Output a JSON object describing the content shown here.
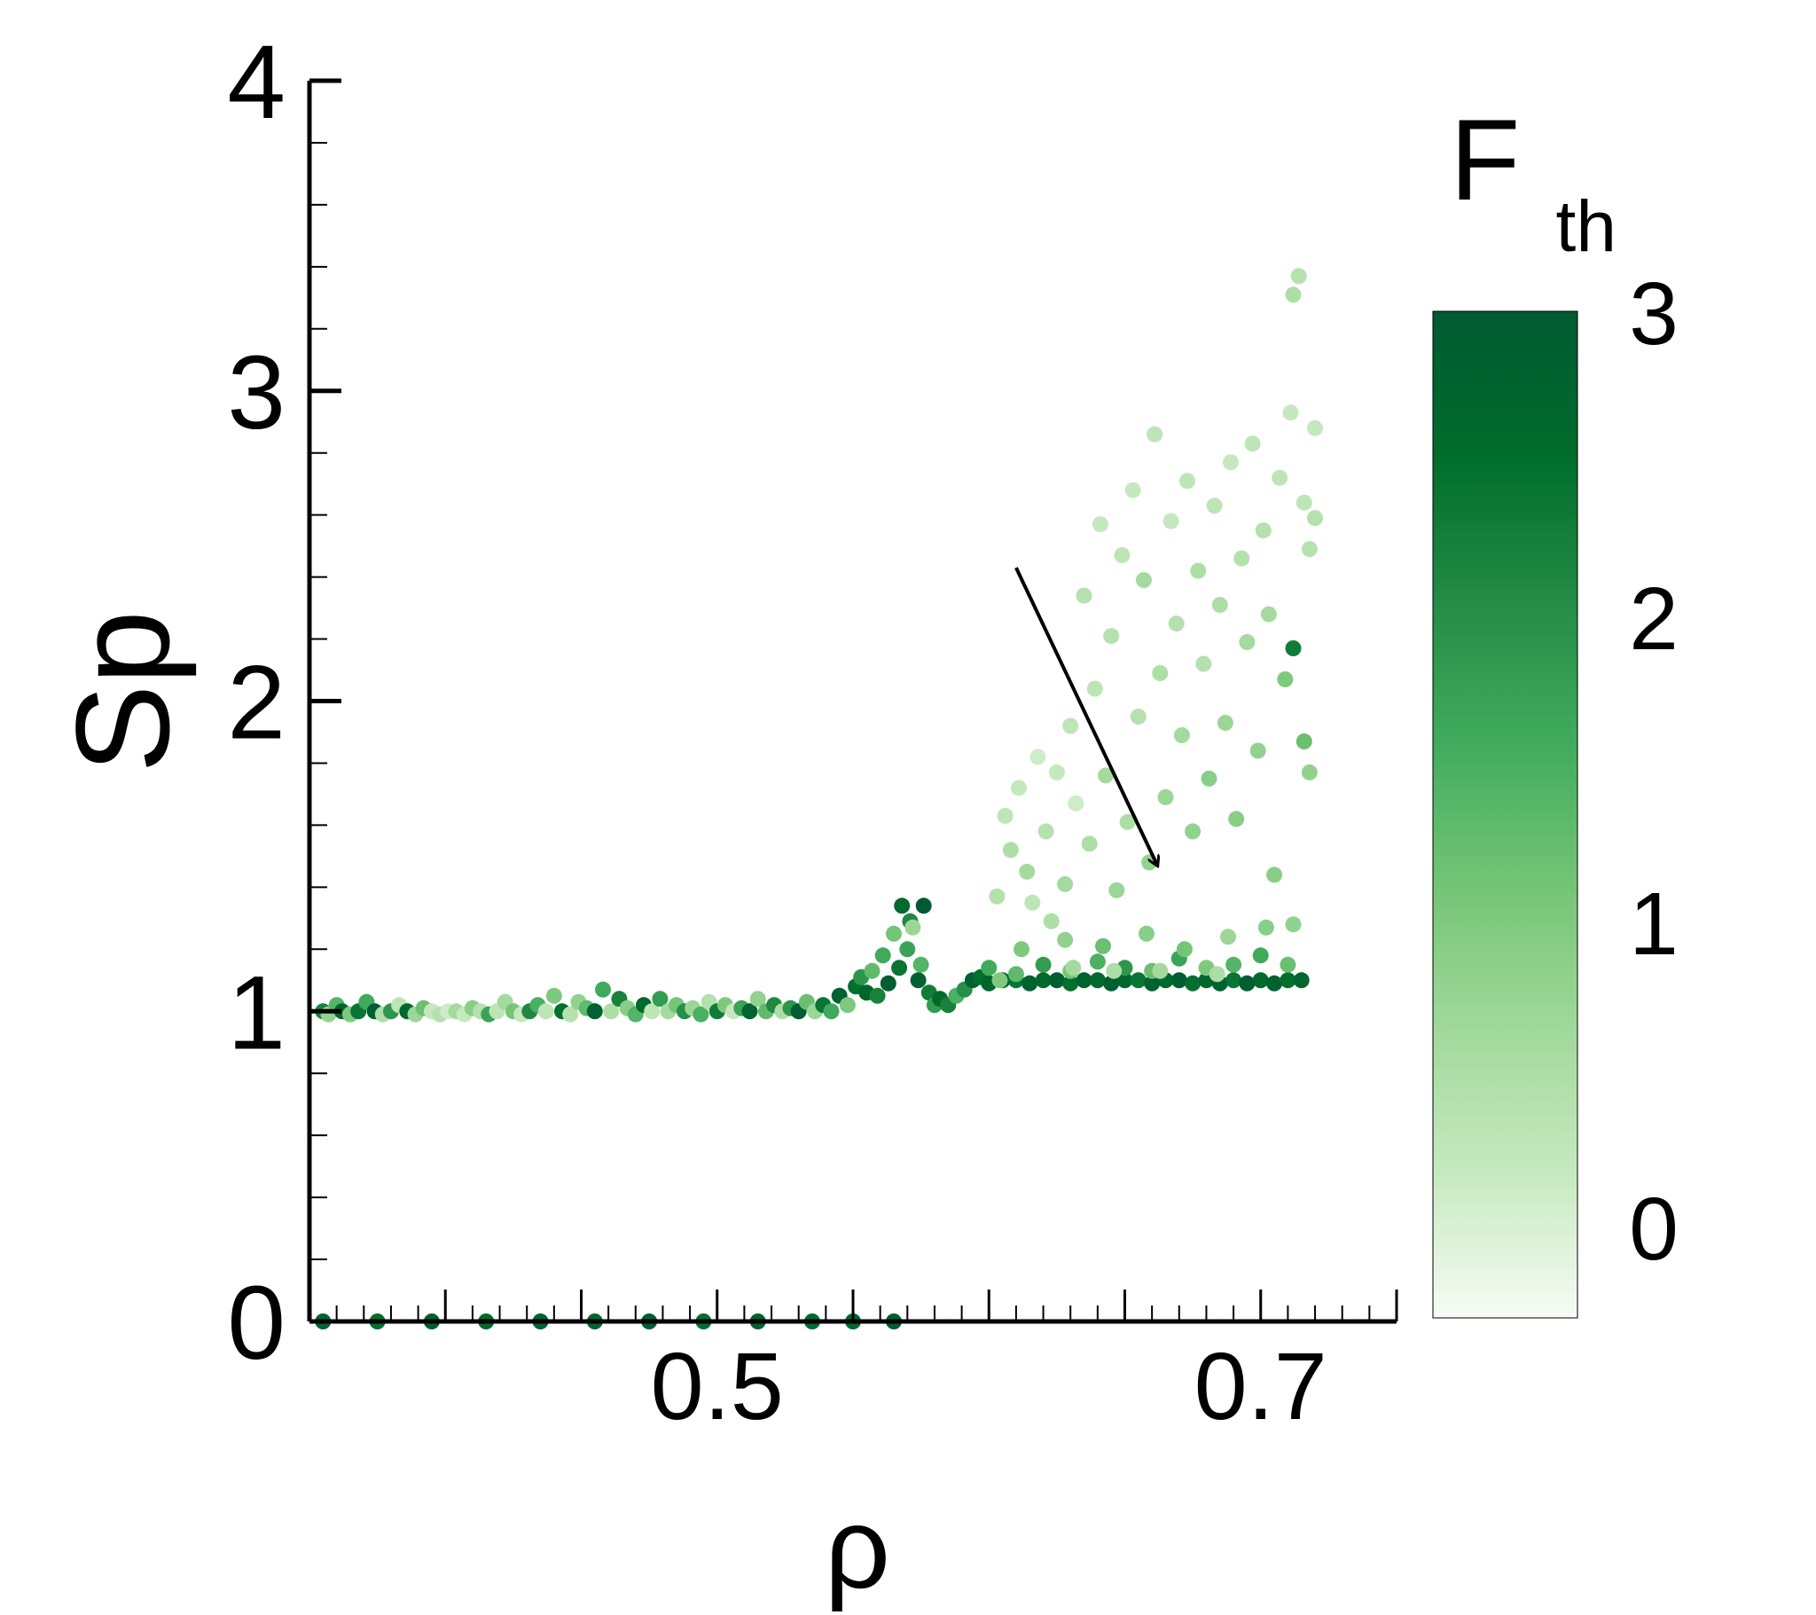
{
  "chart_data": {
    "type": "scatter",
    "title": "",
    "xlabel": "ρ",
    "ylabel": "Sp",
    "xlim": [
      0.35,
      0.75
    ],
    "ylim": [
      0,
      4
    ],
    "x_ticks": [
      0.5,
      0.7
    ],
    "x_tick_labels": [
      "0.5",
      "0.7"
    ],
    "y_ticks": [
      0,
      1,
      2,
      3,
      4
    ],
    "y_tick_labels": [
      "0",
      "1",
      "2",
      "3",
      "4"
    ],
    "grid": false,
    "colorbar": {
      "label_main": "F",
      "label_sub": "th",
      "range": [
        -0.3,
        3
      ],
      "ticks": [
        0,
        1,
        2,
        3
      ],
      "tick_labels": [
        "0",
        "1",
        "2",
        "3"
      ],
      "colors": [
        "#f7fcf5",
        "#c7e9c0",
        "#a1d99b",
        "#74c476",
        "#41ab5d",
        "#238b45",
        "#006d2c",
        "#005a32"
      ]
    },
    "annotation": {
      "type": "arrow",
      "from": [
        0.61,
        2.43
      ],
      "to": [
        0.662,
        1.47
      ]
    },
    "points": [
      [
        0.355,
        1.0,
        2.2
      ],
      [
        0.357,
        0.99,
        0.8
      ],
      [
        0.36,
        1.02,
        1.4
      ],
      [
        0.362,
        1.0,
        2.7
      ],
      [
        0.365,
        0.99,
        1.0
      ],
      [
        0.368,
        1.0,
        2.4
      ],
      [
        0.371,
        1.03,
        1.6
      ],
      [
        0.374,
        1.0,
        2.9
      ],
      [
        0.377,
        0.99,
        0.5
      ],
      [
        0.38,
        1.0,
        1.9
      ],
      [
        0.383,
        1.02,
        0.3
      ],
      [
        0.386,
        1.0,
        2.6
      ],
      [
        0.389,
        0.99,
        0.7
      ],
      [
        0.392,
        1.01,
        1.2
      ],
      [
        0.395,
        1.0,
        0.2
      ],
      [
        0.398,
        0.99,
        0.4
      ],
      [
        0.401,
        1.0,
        0.1
      ],
      [
        0.404,
        1.0,
        0.6
      ],
      [
        0.407,
        0.99,
        0.2
      ],
      [
        0.41,
        1.01,
        0.9
      ],
      [
        0.413,
        1.0,
        0.4
      ],
      [
        0.416,
        0.99,
        1.7
      ],
      [
        0.419,
        1.0,
        0.3
      ],
      [
        0.422,
        1.03,
        0.6
      ],
      [
        0.425,
        1.0,
        1.1
      ],
      [
        0.428,
        0.99,
        0.2
      ],
      [
        0.431,
        1.0,
        2.1
      ],
      [
        0.434,
        1.02,
        1.5
      ],
      [
        0.437,
        1.0,
        0.3
      ],
      [
        0.44,
        1.05,
        1.0
      ],
      [
        0.443,
        1.0,
        2.5
      ],
      [
        0.446,
        0.99,
        0.4
      ],
      [
        0.449,
        1.03,
        0.8
      ],
      [
        0.452,
        1.01,
        1.3
      ],
      [
        0.455,
        1.0,
        2.8
      ],
      [
        0.458,
        1.07,
        1.6
      ],
      [
        0.461,
        1.0,
        0.5
      ],
      [
        0.464,
        1.04,
        2.2
      ],
      [
        0.467,
        1.01,
        0.9
      ],
      [
        0.47,
        0.99,
        1.4
      ],
      [
        0.473,
        1.02,
        2.6
      ],
      [
        0.476,
        1.0,
        0.3
      ],
      [
        0.479,
        1.04,
        1.8
      ],
      [
        0.482,
        1.0,
        0.6
      ],
      [
        0.485,
        1.02,
        1.1
      ],
      [
        0.488,
        1.0,
        2.0
      ],
      [
        0.491,
        1.01,
        0.7
      ],
      [
        0.494,
        0.99,
        1.5
      ],
      [
        0.497,
        1.03,
        0.4
      ],
      [
        0.5,
        1.0,
        2.3
      ],
      [
        0.503,
        1.02,
        1.0
      ],
      [
        0.506,
        1.0,
        0.2
      ],
      [
        0.509,
        1.01,
        1.7
      ],
      [
        0.512,
        1.0,
        2.7
      ],
      [
        0.515,
        1.04,
        0.8
      ],
      [
        0.518,
        1.0,
        1.3
      ],
      [
        0.521,
        1.02,
        2.1
      ],
      [
        0.524,
        1.0,
        0.5
      ],
      [
        0.527,
        1.01,
        1.9
      ],
      [
        0.53,
        1.0,
        2.9
      ],
      [
        0.533,
        1.03,
        1.2
      ],
      [
        0.536,
        1.0,
        0.7
      ],
      [
        0.539,
        1.02,
        2.4
      ],
      [
        0.542,
        1.0,
        1.6
      ],
      [
        0.545,
        1.05,
        2.8
      ],
      [
        0.548,
        1.02,
        1.0
      ],
      [
        0.551,
        1.08,
        2.5
      ],
      [
        0.553,
        1.11,
        1.9
      ],
      [
        0.555,
        1.06,
        2.7
      ],
      [
        0.557,
        1.13,
        1.3
      ],
      [
        0.559,
        1.05,
        2.2
      ],
      [
        0.561,
        1.18,
        1.6
      ],
      [
        0.563,
        1.09,
        2.9
      ],
      [
        0.565,
        1.25,
        1.1
      ],
      [
        0.567,
        1.14,
        2.4
      ],
      [
        0.568,
        1.34,
        2.6
      ],
      [
        0.57,
        1.2,
        1.7
      ],
      [
        0.571,
        1.29,
        2.1
      ],
      [
        0.572,
        1.27,
        0.7
      ],
      [
        0.574,
        1.1,
        2.8
      ],
      [
        0.575,
        1.15,
        1.4
      ],
      [
        0.576,
        1.34,
        3.0
      ],
      [
        0.578,
        1.06,
        2.3
      ],
      [
        0.58,
        1.02,
        1.8
      ],
      [
        0.582,
        1.04,
        2.6
      ],
      [
        0.585,
        1.02,
        2.2
      ],
      [
        0.588,
        1.05,
        1.5
      ],
      [
        0.591,
        1.07,
        2.0
      ],
      [
        0.594,
        1.1,
        2.8
      ],
      [
        0.597,
        1.11,
        2.5
      ],
      [
        0.6,
        1.09,
        2.7
      ],
      [
        0.605,
        1.1,
        2.9
      ],
      [
        0.61,
        1.1,
        2.4
      ],
      [
        0.615,
        1.09,
        2.8
      ],
      [
        0.62,
        1.1,
        2.6
      ],
      [
        0.625,
        1.1,
        2.9
      ],
      [
        0.63,
        1.09,
        2.5
      ],
      [
        0.635,
        1.1,
        2.8
      ],
      [
        0.64,
        1.1,
        2.6
      ],
      [
        0.645,
        1.09,
        2.9
      ],
      [
        0.65,
        1.1,
        2.7
      ],
      [
        0.655,
        1.1,
        2.4
      ],
      [
        0.66,
        1.09,
        2.8
      ],
      [
        0.665,
        1.1,
        2.6
      ],
      [
        0.67,
        1.1,
        2.9
      ],
      [
        0.675,
        1.09,
        2.5
      ],
      [
        0.68,
        1.1,
        2.7
      ],
      [
        0.685,
        1.09,
        2.8
      ],
      [
        0.69,
        1.1,
        2.4
      ],
      [
        0.695,
        1.09,
        2.9
      ],
      [
        0.7,
        1.1,
        2.6
      ],
      [
        0.705,
        1.09,
        2.8
      ],
      [
        0.71,
        1.1,
        2.5
      ],
      [
        0.715,
        1.1,
        2.7
      ],
      [
        0.6,
        1.14,
        1.6
      ],
      [
        0.61,
        1.12,
        1.3
      ],
      [
        0.62,
        1.15,
        1.8
      ],
      [
        0.63,
        1.13,
        1.1
      ],
      [
        0.64,
        1.16,
        1.5
      ],
      [
        0.65,
        1.14,
        1.9
      ],
      [
        0.66,
        1.13,
        1.2
      ],
      [
        0.67,
        1.17,
        1.7
      ],
      [
        0.68,
        1.14,
        1.0
      ],
      [
        0.69,
        1.15,
        1.4
      ],
      [
        0.7,
        1.18,
        1.6
      ],
      [
        0.71,
        1.15,
        1.2
      ],
      [
        0.612,
        1.2,
        1.0
      ],
      [
        0.628,
        1.23,
        0.8
      ],
      [
        0.642,
        1.21,
        1.2
      ],
      [
        0.658,
        1.25,
        0.9
      ],
      [
        0.672,
        1.2,
        1.1
      ],
      [
        0.688,
        1.24,
        0.7
      ],
      [
        0.702,
        1.27,
        0.9
      ],
      [
        0.712,
        1.28,
        0.8
      ],
      [
        0.603,
        1.37,
        0.4
      ],
      [
        0.606,
        1.63,
        0.3
      ],
      [
        0.608,
        1.52,
        0.5
      ],
      [
        0.611,
        1.72,
        0.2
      ],
      [
        0.614,
        1.45,
        0.6
      ],
      [
        0.616,
        1.35,
        0.3
      ],
      [
        0.618,
        1.82,
        0.1
      ],
      [
        0.621,
        1.58,
        0.4
      ],
      [
        0.623,
        1.29,
        0.5
      ],
      [
        0.625,
        1.77,
        0.2
      ],
      [
        0.628,
        1.41,
        0.6
      ],
      [
        0.63,
        1.92,
        0.3
      ],
      [
        0.632,
        1.67,
        0.1
      ],
      [
        0.635,
        2.34,
        0.4
      ],
      [
        0.637,
        1.54,
        0.5
      ],
      [
        0.639,
        2.04,
        0.3
      ],
      [
        0.641,
        2.57,
        0.2
      ],
      [
        0.643,
        1.76,
        0.6
      ],
      [
        0.645,
        2.21,
        0.4
      ],
      [
        0.647,
        1.39,
        0.7
      ],
      [
        0.649,
        2.47,
        0.3
      ],
      [
        0.651,
        1.61,
        0.5
      ],
      [
        0.653,
        2.68,
        0.2
      ],
      [
        0.655,
        1.95,
        0.4
      ],
      [
        0.657,
        2.39,
        0.6
      ],
      [
        0.659,
        1.48,
        0.8
      ],
      [
        0.661,
        2.86,
        0.3
      ],
      [
        0.663,
        2.09,
        0.5
      ],
      [
        0.665,
        1.69,
        0.7
      ],
      [
        0.667,
        2.58,
        0.2
      ],
      [
        0.669,
        2.25,
        0.4
      ],
      [
        0.671,
        1.89,
        0.6
      ],
      [
        0.673,
        2.71,
        0.3
      ],
      [
        0.675,
        1.58,
        0.8
      ],
      [
        0.677,
        2.42,
        0.5
      ],
      [
        0.679,
        2.12,
        0.4
      ],
      [
        0.681,
        1.75,
        0.9
      ],
      [
        0.683,
        2.63,
        0.3
      ],
      [
        0.685,
        2.31,
        0.5
      ],
      [
        0.687,
        1.93,
        0.7
      ],
      [
        0.689,
        2.77,
        0.2
      ],
      [
        0.691,
        1.62,
        0.9
      ],
      [
        0.693,
        2.46,
        0.4
      ],
      [
        0.695,
        2.19,
        0.6
      ],
      [
        0.697,
        2.83,
        0.3
      ],
      [
        0.699,
        1.84,
        0.8
      ],
      [
        0.701,
        2.55,
        0.4
      ],
      [
        0.703,
        2.28,
        0.6
      ],
      [
        0.705,
        1.44,
        0.9
      ],
      [
        0.707,
        2.72,
        0.3
      ],
      [
        0.709,
        2.07,
        1.0
      ],
      [
        0.711,
        2.93,
        0.2
      ],
      [
        0.712,
        3.31,
        0.5
      ],
      [
        0.714,
        3.37,
        0.4
      ],
      [
        0.716,
        2.64,
        0.3
      ],
      [
        0.718,
        2.49,
        0.4
      ],
      [
        0.72,
        2.88,
        0.2
      ],
      [
        0.712,
        2.17,
        2.3
      ],
      [
        0.716,
        1.87,
        1.2
      ],
      [
        0.718,
        1.77,
        0.8
      ],
      [
        0.72,
        2.59,
        0.4
      ],
      [
        0.604,
        1.1,
        1.0
      ],
      [
        0.631,
        1.14,
        0.6
      ],
      [
        0.646,
        1.13,
        0.5
      ],
      [
        0.663,
        1.13,
        0.6
      ],
      [
        0.684,
        1.12,
        0.5
      ],
      [
        0.355,
        0.0,
        2.8
      ],
      [
        0.375,
        0.0,
        2.5
      ],
      [
        0.395,
        0.0,
        2.9
      ],
      [
        0.415,
        0.0,
        2.6
      ],
      [
        0.435,
        0.0,
        2.8
      ],
      [
        0.455,
        0.0,
        2.7
      ],
      [
        0.475,
        0.0,
        2.9
      ],
      [
        0.495,
        0.0,
        2.5
      ],
      [
        0.515,
        0.0,
        2.8
      ],
      [
        0.535,
        0.0,
        2.6
      ],
      [
        0.55,
        0.0,
        2.7
      ],
      [
        0.565,
        0.0,
        2.9
      ]
    ]
  }
}
